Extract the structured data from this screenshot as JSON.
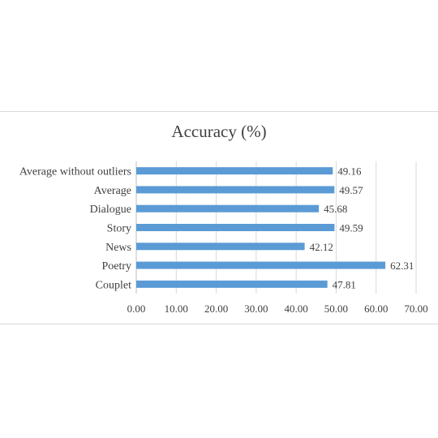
{
  "chart_data": {
    "type": "bar",
    "orientation": "horizontal",
    "title": "Accuracy (%)",
    "categories": [
      "Couplet",
      "Poetry",
      "News",
      "Story",
      "Dialogue",
      "Average",
      "Average without outliers"
    ],
    "values": [
      47.81,
      62.31,
      42.12,
      49.59,
      45.68,
      49.57,
      49.16
    ],
    "data_labels": [
      "47.81",
      "62.31",
      "42.12",
      "49.59",
      "45.68",
      "49.57",
      "49.16"
    ],
    "xlim": [
      0,
      70
    ],
    "x_ticks": [
      "0.00",
      "10.00",
      "20.00",
      "30.00",
      "40.00",
      "50.00",
      "60.00",
      "70.00"
    ],
    "grid": true,
    "legend": "none",
    "bar_color": "#5b9bd5"
  }
}
